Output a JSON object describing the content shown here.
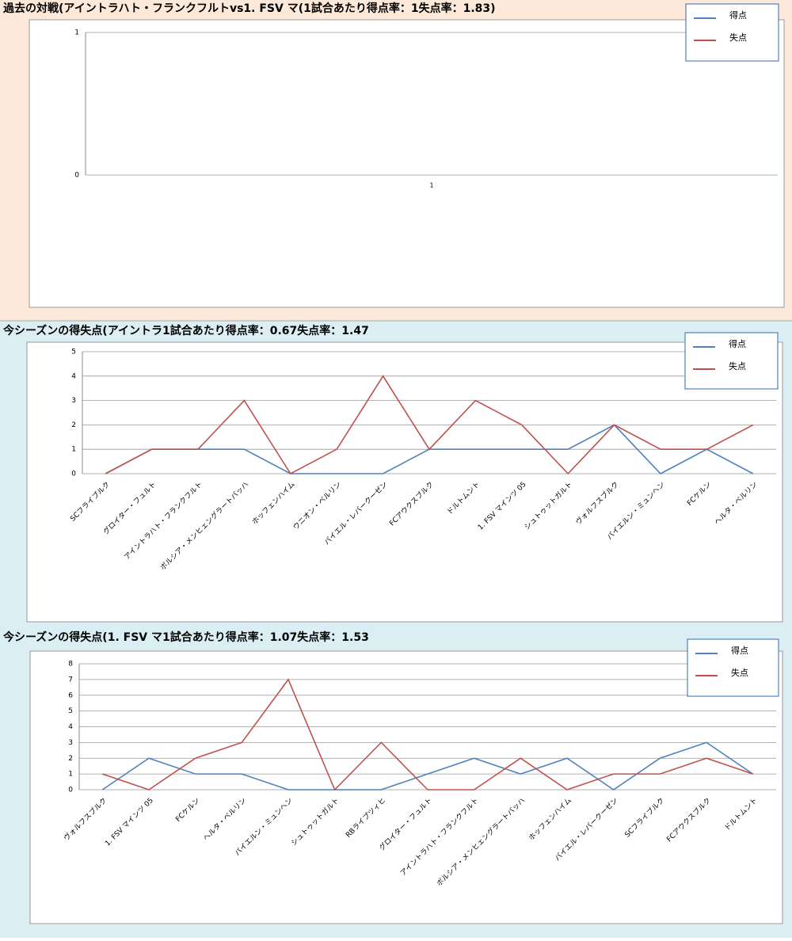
{
  "chart_data": [
    {
      "type": "line",
      "title": "過去の対戦(アイントラハト・フランクフルトvs1. FSV マ(1試合あたり得点率：1失点率：1.83)",
      "categories": [
        "1"
      ],
      "series": [
        {
          "name": "得点",
          "color": "#4f81bd",
          "values": [
            null
          ]
        },
        {
          "name": "失点",
          "color": "#c0504d",
          "values": [
            null
          ]
        }
      ],
      "ylim": [
        0,
        1
      ],
      "yticks": [
        0,
        1
      ],
      "grid": true,
      "legend": "top-right"
    },
    {
      "type": "line",
      "title": "今シーズンの得失点(アイントラ1試合あたり得点率：0.67失点率：1.47",
      "categories": [
        "SCフライブルク",
        "グロイター・フュルト",
        "アイントラハト・フランクフルト",
        "ボルシア・メンヒェングラートバッハ",
        "ホッフェンハイム",
        "ウニオン・ベルリン",
        "バイエル・レバークーゼン",
        "FCアウクスブルク",
        "ドルトムント",
        "1. FSV マインツ 05",
        "シュトゥットガルト",
        "ヴォルフスブルク",
        "バイエルン・ミュンヘン",
        "FCケルン",
        "ヘルタ・ベルリン"
      ],
      "series": [
        {
          "name": "得点",
          "color": "#4f81bd",
          "values": [
            0,
            1,
            1,
            1,
            0,
            0,
            0,
            1,
            1,
            1,
            1,
            2,
            0,
            1,
            0
          ]
        },
        {
          "name": "失点",
          "color": "#c0504d",
          "values": [
            0,
            1,
            1,
            3,
            0,
            1,
            4,
            1,
            3,
            2,
            0,
            2,
            1,
            1,
            2
          ]
        }
      ],
      "ylim": [
        0,
        5
      ],
      "yticks": [
        0,
        1,
        2,
        3,
        4,
        5
      ],
      "grid": true,
      "legend": "top-right"
    },
    {
      "type": "line",
      "title": "今シーズンの得失点(1. FSV マ1試合あたり得点率：1.07失点率：1.53",
      "categories": [
        "ヴォルフスブルク",
        "1. FSV マインツ 05",
        "FCケルン",
        "ヘルタ・ベルリン",
        "バイエルン・ミュンヘン",
        "シュトゥットガルト",
        "RBライプツィヒ",
        "グロイター・フュルト",
        "アイントラハト・フランクフルト",
        "ボルシア・メンヒェングラートバッハ",
        "ホッフェンハイム",
        "バイエル・レバークーゼン",
        "SCフライブルク",
        "FCアウクスブルク",
        "ドルトムント"
      ],
      "series": [
        {
          "name": "得点",
          "color": "#4f81bd",
          "values": [
            0,
            2,
            1,
            1,
            0,
            0,
            0,
            1,
            2,
            1,
            2,
            0,
            2,
            3,
            1
          ]
        },
        {
          "name": "失点",
          "color": "#c0504d",
          "values": [
            1,
            0,
            2,
            3,
            7,
            0,
            3,
            0,
            0,
            2,
            0,
            1,
            1,
            2,
            1
          ]
        }
      ],
      "ylim": [
        0,
        8
      ],
      "yticks": [
        0,
        1,
        2,
        3,
        4,
        5,
        6,
        7,
        8
      ],
      "grid": true,
      "legend": "top-right"
    }
  ]
}
